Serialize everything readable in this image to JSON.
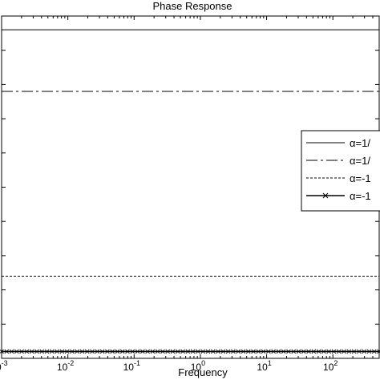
{
  "chart_data": {
    "type": "line",
    "title": "Phase Response",
    "xlabel": "Frequency",
    "ylabel": "",
    "x_scale": "log",
    "xlim": [
      0.001,
      500
    ],
    "x_ticks": [
      {
        "value": 0.001,
        "base": "10",
        "exp": "-3"
      },
      {
        "value": 0.01,
        "base": "10",
        "exp": "-2"
      },
      {
        "value": 0.1,
        "base": "10",
        "exp": "-1"
      },
      {
        "value": 1,
        "base": "10",
        "exp": "0"
      },
      {
        "value": 10,
        "base": "10",
        "exp": "1"
      },
      {
        "value": 100,
        "base": "10",
        "exp": "2"
      }
    ],
    "ylim": [
      0,
      1
    ],
    "y_ticks": [
      0.1,
      0.2,
      0.3,
      0.4,
      0.5,
      0.6,
      0.7,
      0.8,
      0.9
    ],
    "grid": false,
    "legend_position": "right",
    "series": [
      {
        "name": "α=1/",
        "style": "solid",
        "marker": "none",
        "value": 0.96
      },
      {
        "name": "α=1/",
        "style": "dashdot",
        "marker": "none",
        "value": 0.78
      },
      {
        "name": "α=-1",
        "style": "dotted",
        "marker": "none",
        "value": 0.24
      },
      {
        "name": "α=-1",
        "style": "solid",
        "marker": "x",
        "value": 0.02
      }
    ]
  }
}
